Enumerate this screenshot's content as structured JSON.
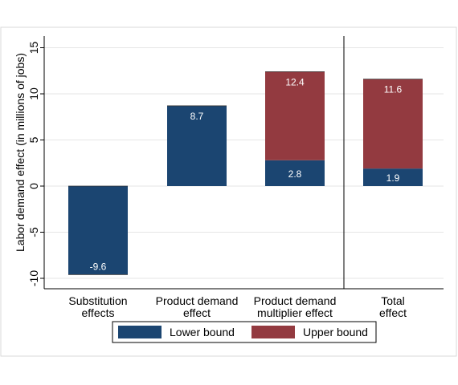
{
  "chart_data": {
    "type": "bar",
    "categories": [
      [
        "Substitution",
        "effects"
      ],
      [
        "Product demand",
        "effect"
      ],
      [
        "Product demand",
        "multiplier effect"
      ],
      [
        "Total",
        "effect"
      ]
    ],
    "series": [
      {
        "name": "Lower bound",
        "values": [
          -9.6,
          8.7,
          2.8,
          1.9
        ],
        "labels": [
          "-9.6",
          "8.7",
          "2.8",
          "1.9"
        ],
        "color": "#1b4571"
      },
      {
        "name": "Upper bound",
        "values": [
          null,
          null,
          12.4,
          11.6
        ],
        "labels": [
          "",
          "",
          "12.4",
          "11.6"
        ],
        "color": "#933a40"
      }
    ],
    "ylabel": "Labor demand effect (in millions of jobs)",
    "ylim": [
      -10,
      15
    ],
    "yticks": [
      -10,
      -5,
      0,
      5,
      10,
      15
    ],
    "ytick_labels": [
      "-10",
      "-5",
      "0",
      "5",
      "10",
      "15"
    ],
    "grid": true,
    "separator_before_category": 3,
    "legend": "bottom",
    "colors": {
      "background": "#ffffff",
      "outer_frame": "#d9d9d9",
      "grid": "#e6e6e6",
      "axis": "#000000"
    }
  }
}
